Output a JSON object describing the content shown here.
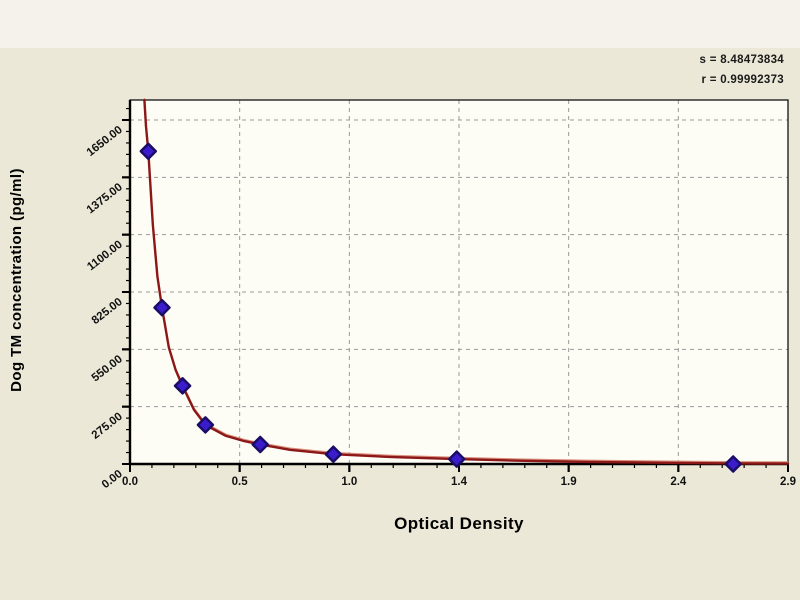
{
  "chart_data": {
    "type": "scatter",
    "title": "",
    "xlabel": "Optical Density",
    "ylabel": "Dog TM concentration (pg/ml)",
    "xlim": [
      0,
      2.88
    ],
    "ylim": [
      0,
      1746
    ],
    "x_tick_values": [
      0,
      0.48,
      0.96,
      1.44,
      1.92,
      2.4,
      2.88
    ],
    "x_tick_labels": [
      "0.0",
      "0.5",
      "1.0",
      "1.4",
      "1.9",
      "2.4",
      "2.9"
    ],
    "x_minor_step": 0.096,
    "y_tick_values": [
      0,
      275,
      550,
      825,
      1100,
      1375,
      1650
    ],
    "y_tick_labels": [
      "0.00",
      "275.00",
      "550.00",
      "825.00",
      "1100.00",
      "1375.00",
      "1650.00"
    ],
    "y_minor_step": 55,
    "grid": "dashed",
    "legend": "none",
    "points": [
      {
        "od": 0.08,
        "conc": 1500
      },
      {
        "od": 0.14,
        "conc": 750
      },
      {
        "od": 0.23,
        "conc": 375
      },
      {
        "od": 0.33,
        "conc": 187.5
      },
      {
        "od": 0.57,
        "conc": 93.75
      },
      {
        "od": 0.89,
        "conc": 46.88
      },
      {
        "od": 1.43,
        "conc": 23.44
      },
      {
        "od": 2.64,
        "conc": 0
      }
    ],
    "curve": [
      [
        0.063,
        1746
      ],
      [
        0.07,
        1620
      ],
      [
        0.08,
        1500
      ],
      [
        0.1,
        1150
      ],
      [
        0.12,
        900
      ],
      [
        0.14,
        750
      ],
      [
        0.17,
        560
      ],
      [
        0.2,
        450
      ],
      [
        0.23,
        375
      ],
      [
        0.28,
        260
      ],
      [
        0.33,
        187.5
      ],
      [
        0.42,
        135
      ],
      [
        0.5,
        110
      ],
      [
        0.57,
        93.75
      ],
      [
        0.7,
        68
      ],
      [
        0.89,
        46.88
      ],
      [
        1.15,
        33
      ],
      [
        1.43,
        23.44
      ],
      [
        1.7,
        16
      ],
      [
        2.0,
        10
      ],
      [
        2.3,
        6
      ],
      [
        2.64,
        3
      ],
      [
        2.88,
        2
      ]
    ],
    "annotations": [
      "s = 8.48473834",
      "r = 0.99992373"
    ],
    "colors": {
      "curve": "#8b1717",
      "curve_highlight": "#d98c7a",
      "marker_fill": "#3a1ccc",
      "marker_stroke": "#1a0d66",
      "background": "#ebe8d7",
      "plot_bg": "#fdfcf5",
      "grid": "#9a9a9a",
      "axis": "#000000"
    }
  }
}
